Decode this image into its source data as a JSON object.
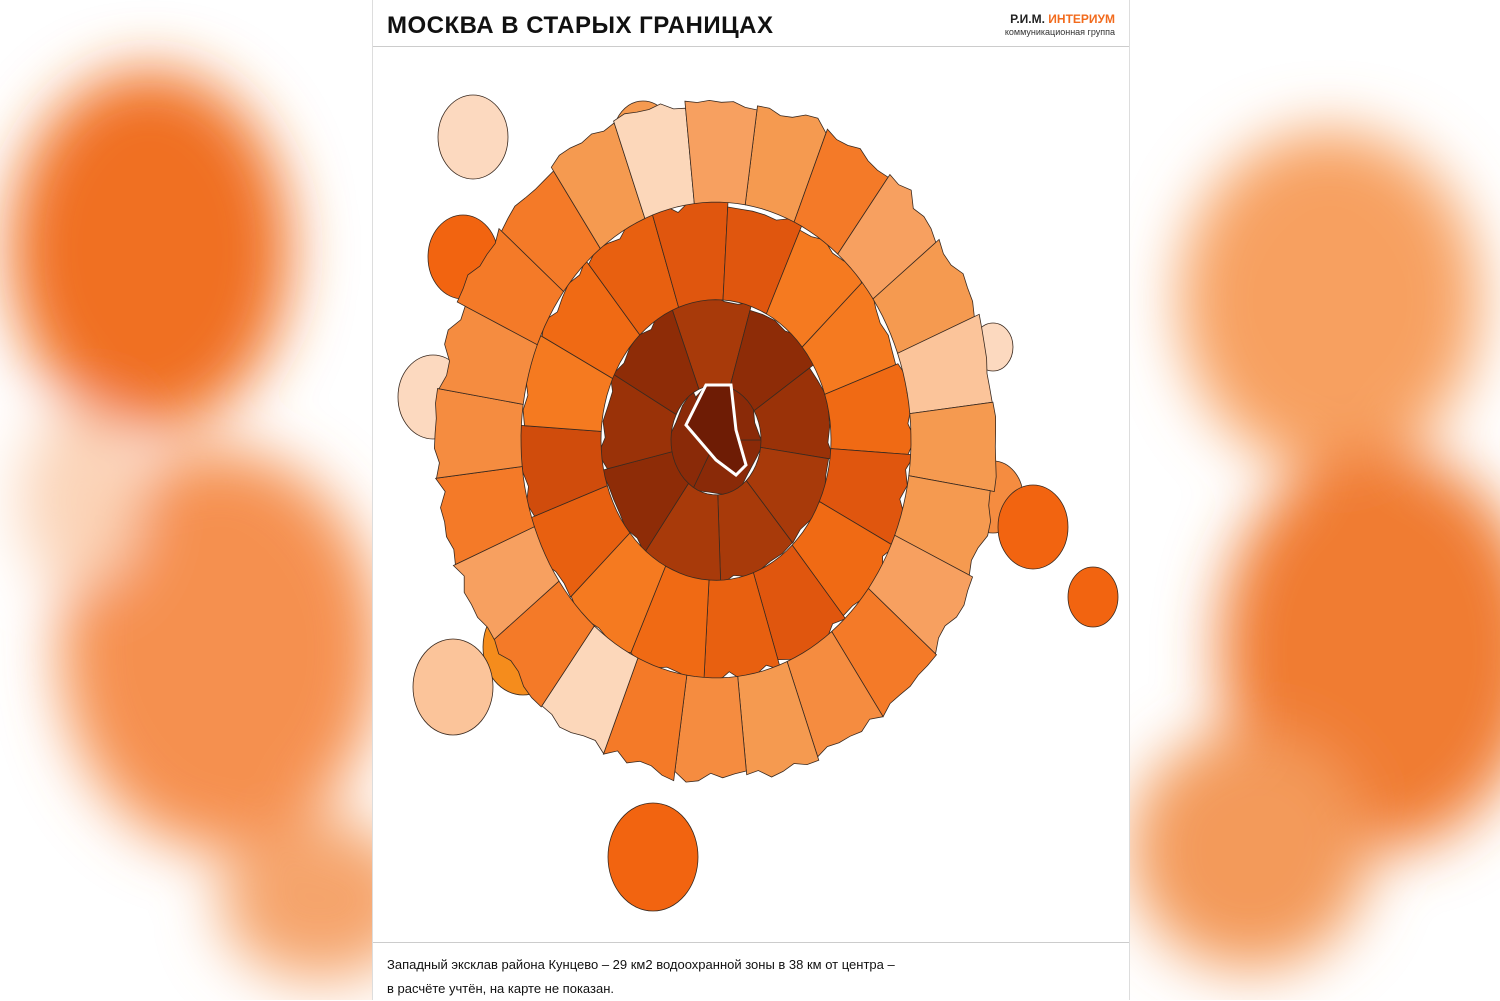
{
  "header": {
    "title": "МОСКВА В СТАРЫХ ГРАНИЦАХ",
    "logo_left": "Р.И.М.",
    "logo_right": "ИНТЕРИУМ",
    "logo_subtitle": "коммуникационная группа"
  },
  "footer": {
    "lines": [
      "Западный эксклав района Кунцево – 29 км2 водоохранной зоны в 38 км от центра –",
      "в расчёте учтён, на карте не показан."
    ]
  }
}
